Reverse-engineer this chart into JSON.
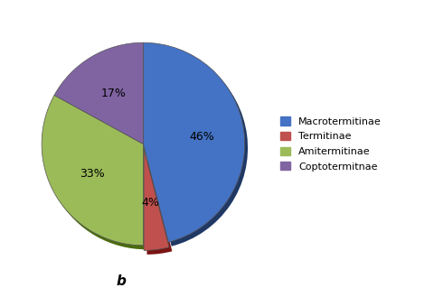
{
  "legend_labels": [
    "Macrotermitinae",
    "Termitinae",
    "Amitermitinae",
    "Coptotermitnae"
  ],
  "values": [
    46,
    4,
    33,
    17
  ],
  "colors": [
    "#4472C4",
    "#C0504D",
    "#9BBB59",
    "#8064A2"
  ],
  "shadow_colors": [
    "#1F3864",
    "#7B1414",
    "#4A6B0F",
    "#3A2455"
  ],
  "explode": [
    0.0,
    0.05,
    0.0,
    0.0
  ],
  "pct_labels": [
    "46%",
    "4%",
    "33%",
    "17%"
  ],
  "label_b": "b",
  "background_color": "#ffffff",
  "startangle": 90,
  "legend_fontsize": 8,
  "pct_fontsize": 9
}
